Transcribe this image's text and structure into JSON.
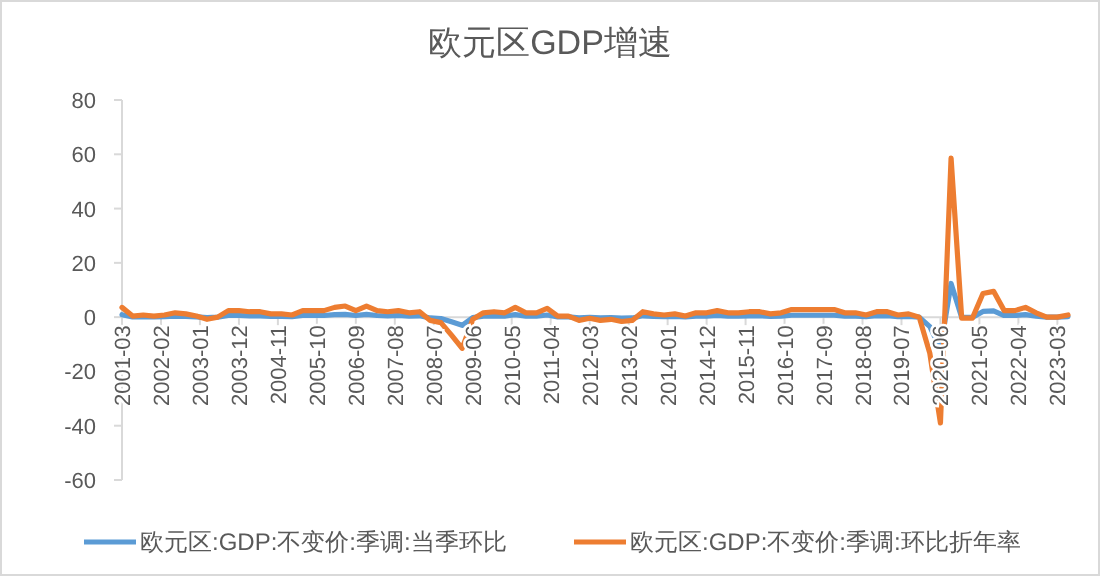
{
  "chart_data": {
    "type": "line",
    "title": "欧元区GDP增速",
    "x": [
      "2001-03",
      "2001-06",
      "2001-09",
      "2001-12",
      "2002-03",
      "2002-06",
      "2002-09",
      "2002-12",
      "2003-03",
      "2003-06",
      "2003-09",
      "2003-12",
      "2004-03",
      "2004-06",
      "2004-09",
      "2004-12",
      "2005-03",
      "2005-06",
      "2005-09",
      "2005-12",
      "2006-03",
      "2006-06",
      "2006-09",
      "2006-12",
      "2007-03",
      "2007-06",
      "2007-09",
      "2007-12",
      "2008-03",
      "2008-06",
      "2008-09",
      "2008-12",
      "2009-03",
      "2009-06",
      "2009-09",
      "2009-12",
      "2010-03",
      "2010-06",
      "2010-09",
      "2010-12",
      "2011-03",
      "2011-06",
      "2011-09",
      "2011-12",
      "2012-03",
      "2012-06",
      "2012-09",
      "2012-12",
      "2013-03",
      "2013-06",
      "2013-09",
      "2013-12",
      "2014-03",
      "2014-06",
      "2014-09",
      "2014-12",
      "2015-03",
      "2015-06",
      "2015-09",
      "2015-12",
      "2016-03",
      "2016-06",
      "2016-09",
      "2016-12",
      "2017-03",
      "2017-06",
      "2017-09",
      "2017-12",
      "2018-03",
      "2018-06",
      "2018-09",
      "2018-12",
      "2019-03",
      "2019-06",
      "2019-09",
      "2019-12",
      "2020-03",
      "2020-06",
      "2020-09",
      "2020-12",
      "2021-03",
      "2021-06",
      "2021-09",
      "2021-12",
      "2022-03",
      "2022-06",
      "2022-09",
      "2022-12",
      "2023-03",
      "2023-06"
    ],
    "series": [
      {
        "name": "欧元区:GDP:不变价:季调:当季环比",
        "color": "#5b9bd5",
        "values": [
          0.9,
          0.1,
          0.2,
          0.1,
          0.2,
          0.4,
          0.3,
          0.1,
          -0.2,
          0.0,
          0.6,
          0.6,
          0.5,
          0.5,
          0.3,
          0.3,
          0.2,
          0.6,
          0.6,
          0.6,
          0.9,
          1.0,
          0.6,
          1.0,
          0.6,
          0.5,
          0.6,
          0.4,
          0.5,
          -0.3,
          -0.5,
          -1.7,
          -3.0,
          -0.2,
          0.4,
          0.5,
          0.4,
          0.9,
          0.4,
          0.4,
          0.8,
          0.1,
          0.1,
          -0.3,
          -0.1,
          -0.3,
          -0.2,
          -0.4,
          -0.3,
          0.5,
          0.3,
          0.2,
          0.3,
          0.1,
          0.4,
          0.4,
          0.6,
          0.4,
          0.4,
          0.5,
          0.5,
          0.3,
          0.4,
          0.7,
          0.7,
          0.7,
          0.7,
          0.7,
          0.4,
          0.4,
          0.2,
          0.5,
          0.5,
          0.2,
          0.3,
          0.0,
          -3.5,
          -11.6,
          12.4,
          -0.1,
          -0.1,
          2.1,
          2.3,
          0.6,
          0.6,
          0.9,
          0.4,
          0.0,
          0.0,
          0.2
        ]
      },
      {
        "name": "欧元区:GDP:不变价:季调:环比折年率",
        "color": "#ed7d31",
        "values": [
          3.6,
          0.4,
          0.8,
          0.4,
          0.8,
          1.6,
          1.2,
          0.4,
          -0.8,
          0.0,
          2.4,
          2.4,
          2.0,
          2.0,
          1.2,
          1.2,
          0.8,
          2.4,
          2.4,
          2.4,
          3.6,
          4.1,
          2.4,
          4.1,
          2.4,
          2.0,
          2.4,
          1.6,
          2.0,
          -1.2,
          -2.0,
          -6.6,
          -11.5,
          -0.8,
          1.6,
          2.0,
          1.6,
          3.6,
          1.6,
          1.6,
          3.2,
          0.4,
          0.4,
          -1.2,
          -0.4,
          -1.2,
          -0.8,
          -1.6,
          -1.2,
          2.0,
          1.2,
          0.8,
          1.2,
          0.4,
          1.6,
          1.6,
          2.4,
          1.6,
          1.6,
          2.0,
          2.0,
          1.2,
          1.6,
          2.8,
          2.8,
          2.8,
          2.8,
          2.8,
          1.6,
          1.6,
          0.8,
          2.0,
          2.0,
          0.8,
          1.2,
          0.0,
          -13.3,
          -39.0,
          58.6,
          -0.4,
          -0.4,
          8.7,
          9.5,
          2.4,
          2.4,
          3.6,
          1.6,
          0.0,
          0.0,
          0.8
        ]
      }
    ],
    "xlim": [
      "2001-03",
      "2023-06"
    ],
    "xticks": [
      {
        "value": "2001-03",
        "label": "2001-03"
      },
      {
        "value": "2002-02",
        "label": "2002-02"
      },
      {
        "value": "2003-01",
        "label": "2003-01"
      },
      {
        "value": "2003-12",
        "label": "2003-12"
      },
      {
        "value": "2004-11",
        "label": "2004-11"
      },
      {
        "value": "2005-10",
        "label": "2005-10"
      },
      {
        "value": "2006-09",
        "label": "2006-09"
      },
      {
        "value": "2007-08",
        "label": "2007-08"
      },
      {
        "value": "2008-07",
        "label": "2008-07"
      },
      {
        "value": "2009-06",
        "label": "2009-06"
      },
      {
        "value": "2010-05",
        "label": "2010-05"
      },
      {
        "value": "2011-04",
        "label": "2011-04"
      },
      {
        "value": "2012-03",
        "label": "2012-03"
      },
      {
        "value": "2013-02",
        "label": "2013-02"
      },
      {
        "value": "2014-01",
        "label": "2014-01"
      },
      {
        "value": "2014-12",
        "label": "2014-12"
      },
      {
        "value": "2015-11",
        "label": "2015-11"
      },
      {
        "value": "2016-10",
        "label": "2016-10"
      },
      {
        "value": "2017-09",
        "label": "2017-09"
      },
      {
        "value": "2018-08",
        "label": "2018-08"
      },
      {
        "value": "2019-07",
        "label": "2019-07"
      },
      {
        "value": "2020-06",
        "label": "2020-06"
      },
      {
        "value": "2021-05",
        "label": "2021-05"
      },
      {
        "value": "2022-04",
        "label": "2022-04"
      },
      {
        "value": "2023-03",
        "label": "2023-03"
      }
    ],
    "ylim": [
      -60,
      80
    ],
    "yticks": [
      -60,
      -40,
      -20,
      0,
      20,
      40,
      60,
      80
    ],
    "grid": false,
    "legend": "bottom",
    "marker": "none",
    "line_style": "solid"
  }
}
